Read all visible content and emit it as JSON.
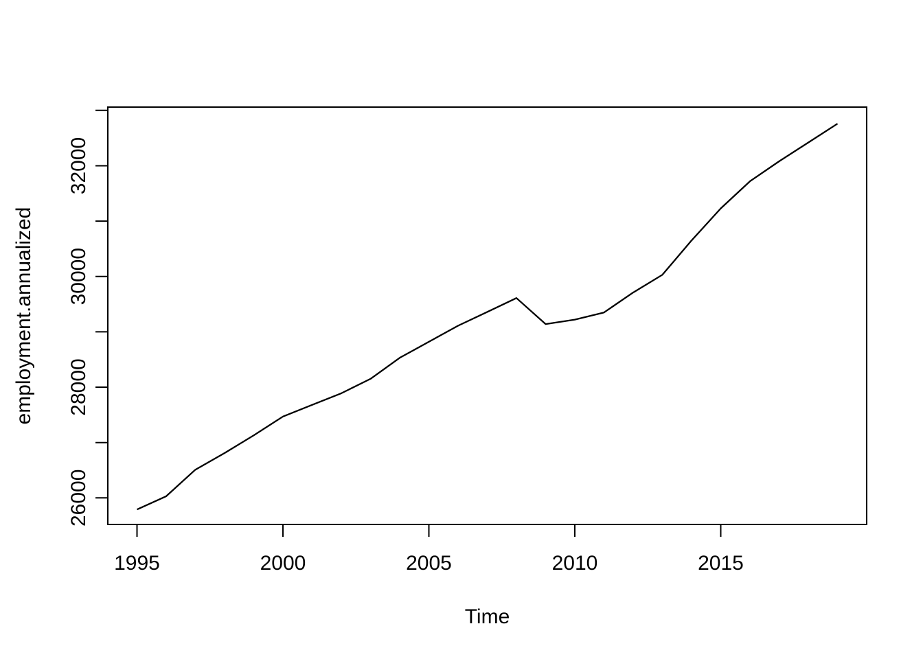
{
  "figure": {
    "background": "#ffffff",
    "title": ""
  },
  "chart_data": {
    "type": "line",
    "title": "",
    "xlabel": "Time",
    "ylabel": "employment.annualized",
    "series": [
      {
        "name": "employment.annualized",
        "x": [
          1995,
          1996,
          1997,
          1998,
          1999,
          2000,
          2001,
          2002,
          2003,
          2004,
          2005,
          2006,
          2007,
          2008,
          2009,
          2010,
          2011,
          2012,
          2013,
          2014,
          2015,
          2016,
          2017,
          2018,
          2019
        ],
        "values": [
          25790,
          26030,
          26510,
          26810,
          27130,
          27470,
          27680,
          27890,
          28150,
          28530,
          28820,
          29110,
          29360,
          29610,
          29140,
          29220,
          29350,
          29710,
          30030,
          30650,
          31230,
          31720,
          32080,
          32420,
          32760
        ]
      }
    ],
    "x_tick_values": [
      1995,
      2000,
      2005,
      2010,
      2015
    ],
    "x_tick_labels": [
      "1995",
      "2000",
      "2005",
      "2010",
      "2015"
    ],
    "y_tick_values_minor": [
      26000,
      27000,
      28000,
      29000,
      30000,
      31000,
      32000,
      33000
    ],
    "y_tick_label_values": [
      26000,
      28000,
      30000,
      32000
    ],
    "y_tick_labels": [
      "26000",
      "28000",
      "30000",
      "32000"
    ],
    "xlim": [
      1994,
      2020
    ],
    "ylim": [
      25520,
      33060
    ],
    "grid": false,
    "legend": "none",
    "line_color": "#000000",
    "axis_color": "#000000",
    "text_color": "#000000"
  }
}
